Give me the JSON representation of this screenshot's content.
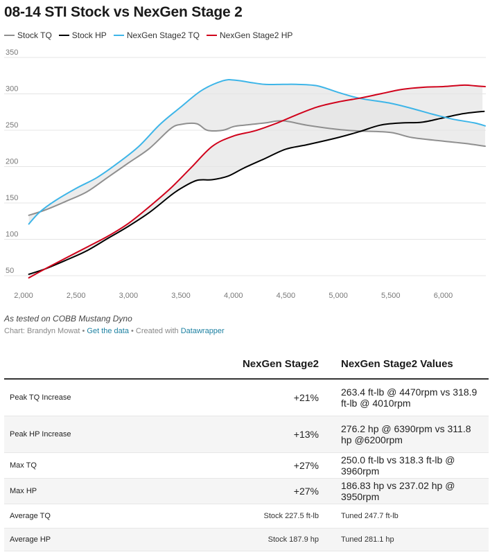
{
  "title": "08-14 STI Stock vs NexGen Stage 2",
  "note": "As tested on COBB Mustang Dyno",
  "credits": {
    "prefix": "Chart: Brandyn Mowat",
    "sep1": " • ",
    "data_link": "Get the data",
    "sep2": " • Created with ",
    "tool_link": "Datawrapper"
  },
  "colors": {
    "stock_tq": "#8f8f8f",
    "stock_hp": "#000000",
    "nexgen_tq": "#3db5e8",
    "nexgen_hp": "#d0021b",
    "gap_fill": "#e6e6e6"
  },
  "chart_data": {
    "type": "line",
    "title": "08-14 STI Stock vs NexGen Stage 2",
    "xlabel": "",
    "ylabel": "",
    "xlim": [
      2000,
      6400
    ],
    "ylim": [
      40,
      350
    ],
    "xticks": [
      2000,
      2500,
      3000,
      3500,
      4000,
      4500,
      5000,
      5500,
      6000
    ],
    "xtick_labels": [
      "2,000",
      "2,500",
      "3,000",
      "3,500",
      "4,000",
      "4,500",
      "5,000",
      "5,500",
      "6,000"
    ],
    "yticks": [
      50,
      100,
      150,
      200,
      250,
      300,
      350
    ],
    "ytick_labels": [
      "50",
      "100",
      "150",
      "200",
      "250",
      "300",
      "350"
    ],
    "grid": true,
    "legend": "top-left",
    "fill_between": [
      [
        "Stock TQ",
        "NexGen Stage2 TQ"
      ],
      [
        "Stock HP",
        "NexGen Stage2 HP"
      ]
    ],
    "series": [
      {
        "name": "Stock TQ",
        "color": "#8f8f8f",
        "points": [
          [
            2050,
            133
          ],
          [
            2200,
            140
          ],
          [
            2400,
            152
          ],
          [
            2600,
            165
          ],
          [
            2800,
            185
          ],
          [
            3000,
            205
          ],
          [
            3200,
            225
          ],
          [
            3400,
            252
          ],
          [
            3500,
            258
          ],
          [
            3650,
            259
          ],
          [
            3750,
            250
          ],
          [
            3900,
            250
          ],
          [
            4000,
            255
          ],
          [
            4100,
            257
          ],
          [
            4300,
            260
          ],
          [
            4470,
            263
          ],
          [
            4700,
            257
          ],
          [
            5000,
            251
          ],
          [
            5200,
            249
          ],
          [
            5500,
            247
          ],
          [
            5700,
            240
          ],
          [
            6000,
            235
          ],
          [
            6200,
            232
          ],
          [
            6400,
            228
          ]
        ]
      },
      {
        "name": "Stock HP",
        "color": "#000000",
        "points": [
          [
            2050,
            52
          ],
          [
            2200,
            59
          ],
          [
            2400,
            71
          ],
          [
            2600,
            84
          ],
          [
            2800,
            101
          ],
          [
            3000,
            118
          ],
          [
            3200,
            137
          ],
          [
            3400,
            160
          ],
          [
            3500,
            170
          ],
          [
            3650,
            181
          ],
          [
            3800,
            182
          ],
          [
            3950,
            187
          ],
          [
            4100,
            198
          ],
          [
            4300,
            211
          ],
          [
            4500,
            224
          ],
          [
            4700,
            230
          ],
          [
            5000,
            240
          ],
          [
            5200,
            248
          ],
          [
            5400,
            257
          ],
          [
            5600,
            260
          ],
          [
            5800,
            261
          ],
          [
            6000,
            267
          ],
          [
            6200,
            273
          ],
          [
            6390,
            276
          ]
        ]
      },
      {
        "name": "NexGen Stage2 TQ",
        "color": "#3db5e8",
        "points": [
          [
            2050,
            121
          ],
          [
            2150,
            137
          ],
          [
            2300,
            153
          ],
          [
            2500,
            170
          ],
          [
            2700,
            185
          ],
          [
            2900,
            205
          ],
          [
            3100,
            228
          ],
          [
            3300,
            258
          ],
          [
            3500,
            282
          ],
          [
            3700,
            305
          ],
          [
            3900,
            318
          ],
          [
            4010,
            319
          ],
          [
            4150,
            316
          ],
          [
            4300,
            313
          ],
          [
            4470,
            313
          ],
          [
            4600,
            313
          ],
          [
            4800,
            311
          ],
          [
            5000,
            302
          ],
          [
            5200,
            294
          ],
          [
            5500,
            287
          ],
          [
            5700,
            280
          ],
          [
            5900,
            272
          ],
          [
            6100,
            265
          ],
          [
            6300,
            260
          ],
          [
            6400,
            256
          ]
        ]
      },
      {
        "name": "NexGen Stage2 HP",
        "color": "#d0021b",
        "points": [
          [
            2050,
            47
          ],
          [
            2200,
            59
          ],
          [
            2400,
            74
          ],
          [
            2600,
            89
          ],
          [
            2800,
            104
          ],
          [
            3000,
            122
          ],
          [
            3200,
            145
          ],
          [
            3400,
            170
          ],
          [
            3600,
            199
          ],
          [
            3800,
            228
          ],
          [
            4000,
            242
          ],
          [
            4200,
            249
          ],
          [
            4400,
            259
          ],
          [
            4600,
            271
          ],
          [
            4800,
            282
          ],
          [
            5000,
            289
          ],
          [
            5200,
            294
          ],
          [
            5400,
            300
          ],
          [
            5600,
            306
          ],
          [
            5800,
            309
          ],
          [
            6000,
            310
          ],
          [
            6200,
            312
          ],
          [
            6300,
            311
          ],
          [
            6400,
            310
          ]
        ]
      }
    ]
  },
  "table": {
    "headers": [
      "",
      "NexGen Stage2",
      "NexGen Stage2 Values"
    ],
    "rows": [
      {
        "label": "Peak TQ Increase",
        "pct": "+21%",
        "values": "263.4 ft-lb @ 4470rpm vs 318.9 ft-lb @ 4010rpm"
      },
      {
        "label": "Peak HP Increase",
        "pct": "+13%",
        "values": "276.2 hp @ 6390rpm vs 311.8 hp @6200rpm"
      },
      {
        "label": "Max TQ",
        "pct": "+27%",
        "values": "250.0 ft-lb vs 318.3 ft-lb @ 3960rpm"
      },
      {
        "label": "Max HP",
        "pct": "+27%",
        "values": "186.83 hp vs 237.02 hp @ 3950rpm"
      },
      {
        "label": "Average TQ",
        "pct": "Stock 227.5 ft-lb",
        "values": "Tuned 247.7 ft-lb"
      },
      {
        "label": "Average HP",
        "pct": "Stock 187.9 hp",
        "values": "Tuned 281.1 hp"
      }
    ]
  }
}
